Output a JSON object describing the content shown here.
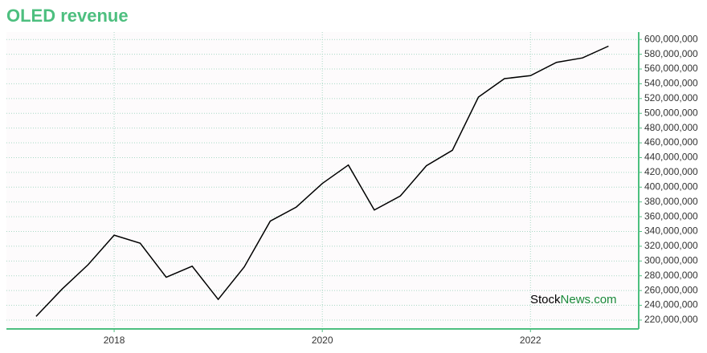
{
  "chart_data": {
    "type": "line",
    "title": "OLED revenue",
    "x": [
      2017.25,
      2017.5,
      2017.75,
      2018,
      2018.25,
      2018.5,
      2018.75,
      2019,
      2019.25,
      2019.5,
      2019.75,
      2020,
      2020.25,
      2020.5,
      2020.75,
      2021,
      2021.25,
      2021.5,
      2021.75,
      2022,
      2022.25,
      2022.5,
      2022.75
    ],
    "values": [
      225000000,
      262000000,
      295000000,
      335000000,
      324000000,
      278000000,
      293000000,
      248000000,
      292000000,
      354000000,
      373000000,
      405000000,
      430000000,
      369000000,
      388000000,
      429000000,
      450000000,
      522000000,
      547000000,
      551000000,
      569000000,
      575000000,
      591000000
    ],
    "color": "#000000",
    "xlim": [
      2016.965,
      2023.04
    ],
    "xticks": [
      2018,
      2020,
      2022
    ],
    "ylim": [
      208000000,
      610000000
    ],
    "yticks": [
      {
        "value": 220000000,
        "label": "220,000,000"
      },
      {
        "value": 240000000,
        "label": "240,000,000"
      },
      {
        "value": 260000000,
        "label": "260,000,000"
      },
      {
        "value": 280000000,
        "label": "280,000,000"
      },
      {
        "value": 300000000,
        "label": "300,000,000"
      },
      {
        "value": 320000000,
        "label": "320,000,000"
      },
      {
        "value": 340000000,
        "label": "340,000,000"
      },
      {
        "value": 360000000,
        "label": "360,000,000"
      },
      {
        "value": 380000000,
        "label": "380,000,000"
      },
      {
        "value": 400000000,
        "label": "400,000,000"
      },
      {
        "value": 420000000,
        "label": "420,000,000"
      },
      {
        "value": 440000000,
        "label": "440,000,000"
      },
      {
        "value": 460000000,
        "label": "460,000,000"
      },
      {
        "value": 480000000,
        "label": "480,000,000"
      },
      {
        "value": 500000000,
        "label": "500,000,000"
      },
      {
        "value": 520000000,
        "label": "520,000,000"
      },
      {
        "value": 540000000,
        "label": "540,000,000"
      },
      {
        "value": 560000000,
        "label": "560,000,000"
      },
      {
        "value": 580000000,
        "label": "580,000,000"
      },
      {
        "value": 600000000,
        "label": "600,000,000"
      }
    ],
    "grid": true,
    "watermark": [
      "Stock",
      "News.com"
    ]
  }
}
